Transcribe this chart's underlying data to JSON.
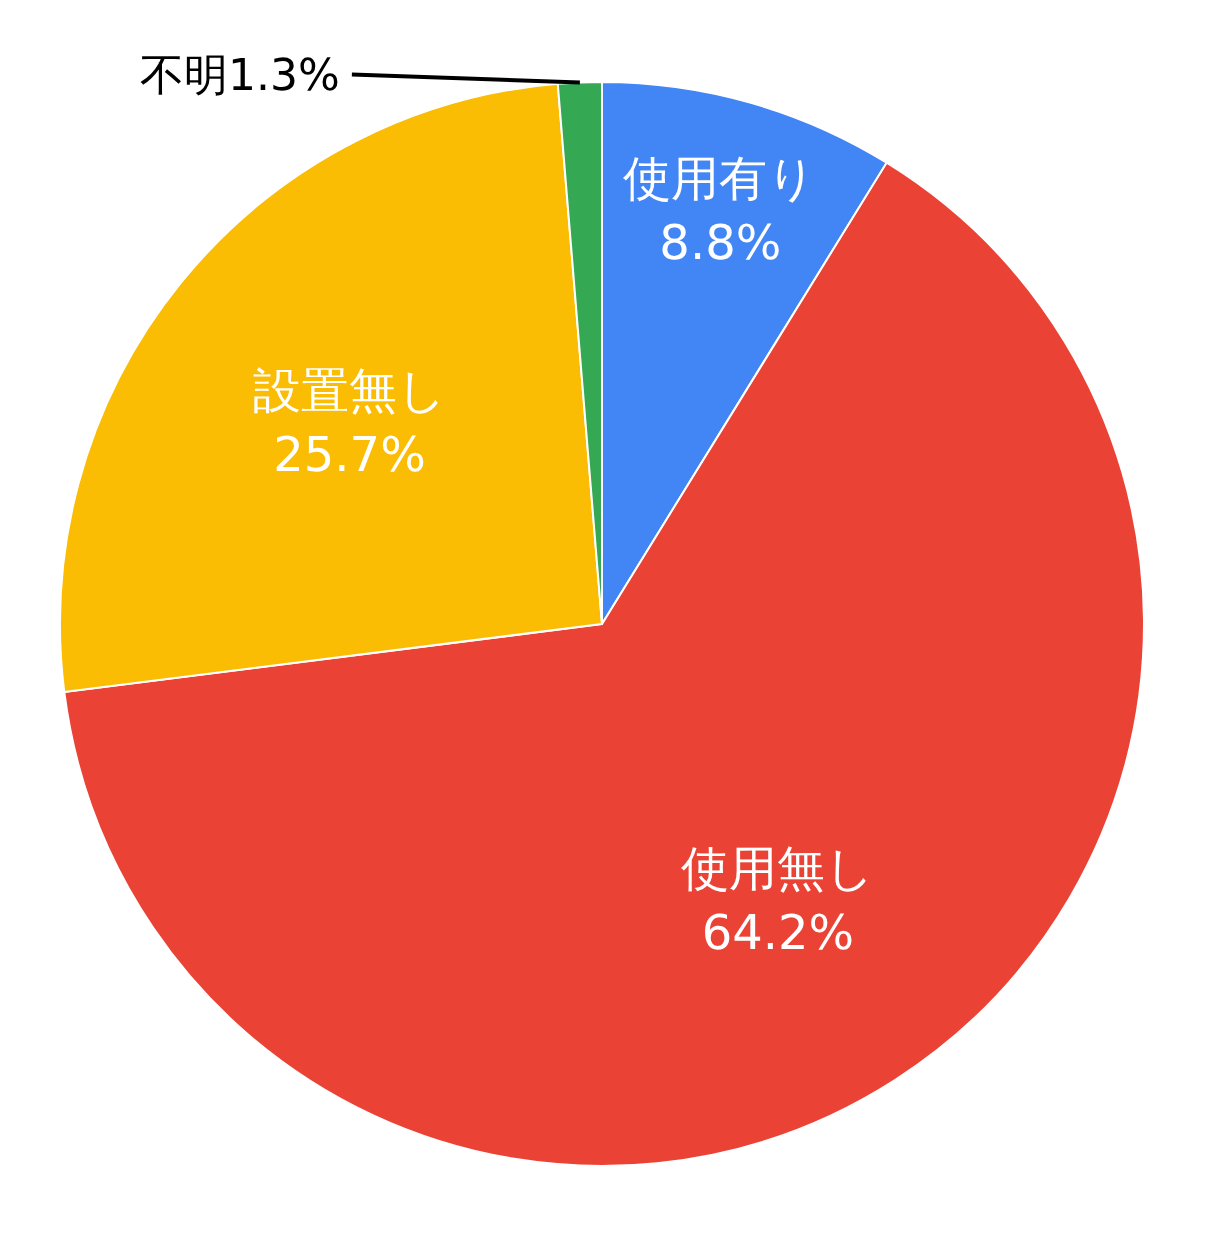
{
  "chart_data": {
    "type": "pie",
    "categories": [
      "使用有り",
      "使用無し",
      "設置無し",
      "不明"
    ],
    "values": [
      8.8,
      64.2,
      25.7,
      1.3
    ],
    "value_labels": [
      "8.8%",
      "64.2%",
      "25.7%",
      "1.3%"
    ],
    "colors": [
      "#4285f4",
      "#ea4335",
      "#fbbc04",
      "#34a853"
    ]
  }
}
